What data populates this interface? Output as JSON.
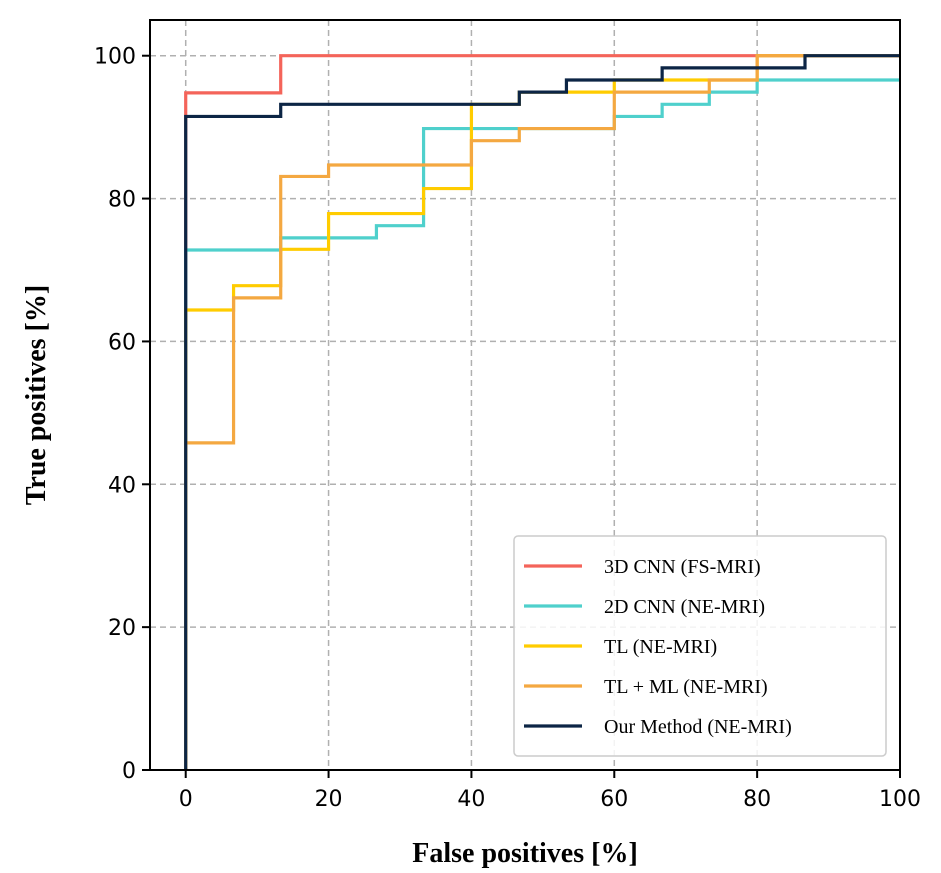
{
  "chart_data": {
    "type": "line",
    "title": "",
    "xlabel": "False positives [%]",
    "ylabel": "True positives [%]",
    "xlim": [
      -5,
      100
    ],
    "ylim": [
      0,
      105
    ],
    "xticks": [
      0,
      20,
      40,
      60,
      80,
      100
    ],
    "yticks": [
      0,
      20,
      40,
      60,
      80,
      100
    ],
    "grid": true,
    "legend_position": "bottom-right",
    "series": [
      {
        "name": "3D CNN (FS-MRI)",
        "color": "#f4645a",
        "points": [
          [
            0,
            0
          ],
          [
            0,
            94.8
          ],
          [
            13.3,
            94.8
          ],
          [
            13.3,
            100
          ],
          [
            100,
            100
          ]
        ]
      },
      {
        "name": "2D CNN (NE-MRI)",
        "color": "#4fd0cc",
        "points": [
          [
            0,
            0
          ],
          [
            0,
            72.8
          ],
          [
            13.3,
            72.8
          ],
          [
            13.3,
            74.5
          ],
          [
            26.7,
            74.5
          ],
          [
            26.7,
            76.2
          ],
          [
            33.3,
            76.2
          ],
          [
            33.3,
            89.8
          ],
          [
            60,
            89.8
          ],
          [
            60,
            91.5
          ],
          [
            66.7,
            91.5
          ],
          [
            66.7,
            93.2
          ],
          [
            73.3,
            93.2
          ],
          [
            73.3,
            94.9
          ],
          [
            80,
            94.9
          ],
          [
            80,
            96.6
          ],
          [
            100,
            96.6
          ]
        ]
      },
      {
        "name": "TL (NE-MRI)",
        "color": "#ffcc00",
        "points": [
          [
            0,
            0
          ],
          [
            0,
            64.4
          ],
          [
            6.7,
            64.4
          ],
          [
            6.7,
            67.8
          ],
          [
            13.3,
            67.8
          ],
          [
            13.3,
            72.9
          ],
          [
            20,
            72.9
          ],
          [
            20,
            77.9
          ],
          [
            33.3,
            77.9
          ],
          [
            33.3,
            81.4
          ],
          [
            40,
            81.4
          ],
          [
            40,
            93.2
          ],
          [
            46.7,
            93.2
          ],
          [
            46.7,
            94.9
          ],
          [
            60,
            94.9
          ],
          [
            60,
            96.6
          ],
          [
            80,
            96.6
          ],
          [
            80,
            100
          ],
          [
            100,
            100
          ]
        ]
      },
      {
        "name": "TL + ML (NE-MRI)",
        "color": "#f4a841",
        "points": [
          [
            0,
            0
          ],
          [
            0,
            45.8
          ],
          [
            6.7,
            45.8
          ],
          [
            6.7,
            66.1
          ],
          [
            13.3,
            66.1
          ],
          [
            13.3,
            83.1
          ],
          [
            20,
            83.1
          ],
          [
            20,
            84.7
          ],
          [
            40,
            84.7
          ],
          [
            40,
            88.1
          ],
          [
            46.7,
            88.1
          ],
          [
            46.7,
            89.8
          ],
          [
            60,
            89.8
          ],
          [
            60,
            94.9
          ],
          [
            73.3,
            94.9
          ],
          [
            73.3,
            96.6
          ],
          [
            80,
            96.6
          ],
          [
            80,
            100
          ],
          [
            100,
            100
          ]
        ]
      },
      {
        "name": "Our Method (NE-MRI)",
        "color": "#0c2545",
        "points": [
          [
            0,
            0
          ],
          [
            0,
            91.5
          ],
          [
            13.3,
            91.5
          ],
          [
            13.3,
            93.2
          ],
          [
            46.7,
            93.2
          ],
          [
            46.7,
            94.9
          ],
          [
            53.3,
            94.9
          ],
          [
            53.3,
            96.6
          ],
          [
            66.7,
            96.6
          ],
          [
            66.7,
            98.3
          ],
          [
            86.7,
            98.3
          ],
          [
            86.7,
            100
          ],
          [
            100,
            100
          ]
        ]
      }
    ]
  }
}
